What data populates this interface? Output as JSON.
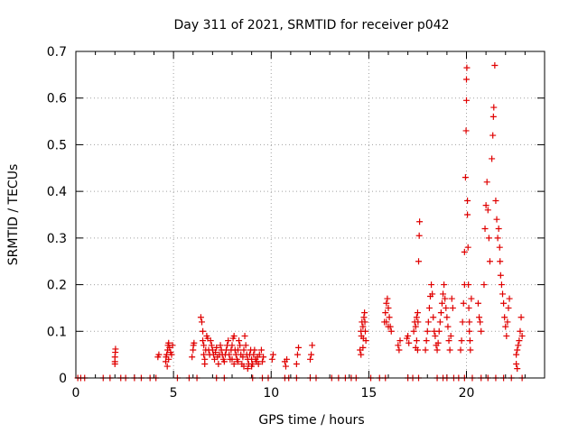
{
  "chart_data": {
    "type": "scatter",
    "title": "Day 311 of 2021, SRMTID for receiver p042",
    "xlabel": "GPS time / hours",
    "ylabel": "SRMTID / TECUs",
    "xlim": [
      0,
      24
    ],
    "ylim": [
      0,
      0.7
    ],
    "x_ticks": [
      0,
      5,
      10,
      15,
      20
    ],
    "x_tick_labels": [
      "0",
      "5",
      "10",
      "15",
      "20"
    ],
    "y_ticks": [
      0,
      0.1,
      0.2,
      0.3,
      0.4,
      0.5,
      0.6,
      0.7
    ],
    "y_tick_labels": [
      "0",
      "0.1",
      "0.2",
      "0.3",
      "0.4",
      "0.5",
      "0.6",
      "0.7"
    ],
    "grid": true,
    "marker": "+",
    "marker_color": "#e00000",
    "series": [
      {
        "name": "SRMTID",
        "points": [
          [
            0.1,
            0
          ],
          [
            0.25,
            0
          ],
          [
            0.45,
            0
          ],
          [
            1.4,
            0
          ],
          [
            1.75,
            0
          ],
          [
            2.3,
            0
          ],
          [
            2.55,
            0
          ],
          [
            3.0,
            0
          ],
          [
            3.35,
            0
          ],
          [
            3.8,
            0
          ],
          [
            4.1,
            0
          ],
          [
            5.2,
            0
          ],
          [
            5.8,
            0
          ],
          [
            6.2,
            0
          ],
          [
            7.2,
            0
          ],
          [
            7.6,
            0
          ],
          [
            9.05,
            0
          ],
          [
            9.55,
            0
          ],
          [
            9.85,
            0
          ],
          [
            10.7,
            0
          ],
          [
            10.9,
            0
          ],
          [
            11.3,
            0
          ],
          [
            12.0,
            0
          ],
          [
            12.3,
            0
          ],
          [
            13.1,
            0
          ],
          [
            13.45,
            0
          ],
          [
            13.8,
            0
          ],
          [
            14.1,
            0
          ],
          [
            14.35,
            0
          ],
          [
            15.1,
            0
          ],
          [
            15.55,
            0
          ],
          [
            15.85,
            0
          ],
          [
            17.0,
            0
          ],
          [
            17.25,
            0
          ],
          [
            17.55,
            0
          ],
          [
            18.5,
            0
          ],
          [
            18.8,
            0
          ],
          [
            19.0,
            0
          ],
          [
            19.35,
            0
          ],
          [
            19.6,
            0
          ],
          [
            19.9,
            0
          ],
          [
            20.3,
            0
          ],
          [
            20.75,
            0
          ],
          [
            21.1,
            0
          ],
          [
            21.5,
            0
          ],
          [
            21.9,
            0
          ],
          [
            22.3,
            0
          ],
          [
            22.85,
            0
          ],
          [
            2.0,
            0.035
          ],
          [
            2.0,
            0.045
          ],
          [
            2.02,
            0.055
          ],
          [
            2.03,
            0.062
          ],
          [
            2.0,
            0.03
          ],
          [
            4.2,
            0.045
          ],
          [
            4.25,
            0.05
          ],
          [
            4.6,
            0.035
          ],
          [
            4.62,
            0.045
          ],
          [
            4.65,
            0.05
          ],
          [
            4.7,
            0.06
          ],
          [
            4.72,
            0.07
          ],
          [
            4.75,
            0.075
          ],
          [
            4.8,
            0.065
          ],
          [
            4.85,
            0.055
          ],
          [
            4.9,
            0.05
          ],
          [
            4.95,
            0.07
          ],
          [
            4.68,
            0.025
          ],
          [
            4.75,
            0.04
          ],
          [
            5.95,
            0.045
          ],
          [
            6.0,
            0.06
          ],
          [
            6.02,
            0.07
          ],
          [
            6.05,
            0.075
          ],
          [
            6.4,
            0.13
          ],
          [
            6.45,
            0.12
          ],
          [
            6.5,
            0.1
          ],
          [
            6.5,
            0.08
          ],
          [
            6.55,
            0.07
          ],
          [
            6.55,
            0.05
          ],
          [
            6.6,
            0.04
          ],
          [
            6.6,
            0.03
          ],
          [
            6.65,
            0.06
          ],
          [
            6.7,
            0.09
          ],
          [
            6.75,
            0.085
          ],
          [
            6.8,
            0.06
          ],
          [
            6.85,
            0.05
          ],
          [
            6.9,
            0.08
          ],
          [
            6.95,
            0.07
          ],
          [
            7.0,
            0.06
          ],
          [
            7.05,
            0.05
          ],
          [
            7.1,
            0.04
          ],
          [
            7.15,
            0.055
          ],
          [
            7.2,
            0.065
          ],
          [
            7.25,
            0.045
          ],
          [
            7.3,
            0.03
          ],
          [
            7.35,
            0.05
          ],
          [
            7.4,
            0.07
          ],
          [
            7.45,
            0.06
          ],
          [
            7.5,
            0.05
          ],
          [
            7.55,
            0.04
          ],
          [
            7.6,
            0.035
          ],
          [
            7.65,
            0.05
          ],
          [
            7.7,
            0.06
          ],
          [
            7.75,
            0.07
          ],
          [
            7.8,
            0.08
          ],
          [
            7.85,
            0.05
          ],
          [
            7.9,
            0.04
          ],
          [
            7.95,
            0.06
          ],
          [
            8.0,
            0.07
          ],
          [
            8.05,
            0.085
          ],
          [
            8.1,
            0.09
          ],
          [
            8.15,
            0.06
          ],
          [
            8.2,
            0.05
          ],
          [
            8.25,
            0.04
          ],
          [
            8.3,
            0.06
          ],
          [
            8.35,
            0.08
          ],
          [
            8.4,
            0.07
          ],
          [
            8.45,
            0.05
          ],
          [
            8.5,
            0.03
          ],
          [
            8.55,
            0.045
          ],
          [
            8.6,
            0.06
          ],
          [
            8.65,
            0.09
          ],
          [
            8.7,
            0.07
          ],
          [
            8.75,
            0.05
          ],
          [
            8.8,
            0.04
          ],
          [
            8.85,
            0.03
          ],
          [
            8.9,
            0.05
          ],
          [
            8.95,
            0.06
          ],
          [
            9.0,
            0.04
          ],
          [
            9.05,
            0.03
          ],
          [
            9.1,
            0.05
          ],
          [
            9.15,
            0.06
          ],
          [
            9.2,
            0.04
          ],
          [
            9.25,
            0.035
          ],
          [
            9.3,
            0.045
          ],
          [
            9.35,
            0.03
          ],
          [
            9.4,
            0.05
          ],
          [
            9.5,
            0.06
          ],
          [
            9.55,
            0.035
          ],
          [
            9.6,
            0.045
          ],
          [
            8.0,
            0.04
          ],
          [
            8.1,
            0.03
          ],
          [
            8.3,
            0.035
          ],
          [
            8.6,
            0.025
          ],
          [
            8.8,
            0.02
          ],
          [
            9.0,
            0.025
          ],
          [
            10.05,
            0.04
          ],
          [
            10.1,
            0.05
          ],
          [
            10.7,
            0.035
          ],
          [
            10.75,
            0.025
          ],
          [
            10.8,
            0.04
          ],
          [
            11.3,
            0.03
          ],
          [
            11.35,
            0.05
          ],
          [
            11.4,
            0.065
          ],
          [
            12.0,
            0.04
          ],
          [
            12.05,
            0.05
          ],
          [
            12.1,
            0.07
          ],
          [
            14.6,
            0.1
          ],
          [
            14.62,
            0.09
          ],
          [
            14.65,
            0.12
          ],
          [
            14.7,
            0.11
          ],
          [
            14.72,
            0.085
          ],
          [
            14.75,
            0.13
          ],
          [
            14.78,
            0.14
          ],
          [
            14.8,
            0.12
          ],
          [
            14.82,
            0.1
          ],
          [
            14.85,
            0.08
          ],
          [
            14.55,
            0.06
          ],
          [
            14.6,
            0.05
          ],
          [
            14.7,
            0.065
          ],
          [
            15.8,
            0.12
          ],
          [
            15.85,
            0.14
          ],
          [
            15.9,
            0.16
          ],
          [
            15.95,
            0.17
          ],
          [
            16.0,
            0.15
          ],
          [
            16.05,
            0.13
          ],
          [
            16.1,
            0.11
          ],
          [
            16.15,
            0.1
          ],
          [
            15.9,
            0.12
          ],
          [
            16.0,
            0.11
          ],
          [
            16.5,
            0.07
          ],
          [
            16.55,
            0.06
          ],
          [
            16.6,
            0.08
          ],
          [
            16.95,
            0.085
          ],
          [
            17.0,
            0.09
          ],
          [
            17.05,
            0.075
          ],
          [
            17.3,
            0.1
          ],
          [
            17.35,
            0.12
          ],
          [
            17.4,
            0.11
          ],
          [
            17.45,
            0.13
          ],
          [
            17.5,
            0.14
          ],
          [
            17.52,
            0.12
          ],
          [
            17.55,
            0.25
          ],
          [
            17.58,
            0.305
          ],
          [
            17.6,
            0.335
          ],
          [
            17.4,
            0.065
          ],
          [
            17.45,
            0.08
          ],
          [
            17.5,
            0.06
          ],
          [
            17.9,
            0.06
          ],
          [
            17.95,
            0.08
          ],
          [
            18.0,
            0.1
          ],
          [
            18.05,
            0.12
          ],
          [
            18.1,
            0.15
          ],
          [
            18.15,
            0.175
          ],
          [
            18.2,
            0.2
          ],
          [
            18.25,
            0.18
          ],
          [
            18.3,
            0.13
          ],
          [
            18.35,
            0.1
          ],
          [
            18.4,
            0.09
          ],
          [
            18.45,
            0.07
          ],
          [
            18.5,
            0.06
          ],
          [
            18.55,
            0.075
          ],
          [
            18.6,
            0.1
          ],
          [
            18.65,
            0.12
          ],
          [
            18.7,
            0.14
          ],
          [
            18.75,
            0.16
          ],
          [
            18.8,
            0.18
          ],
          [
            18.85,
            0.2
          ],
          [
            18.9,
            0.17
          ],
          [
            18.95,
            0.15
          ],
          [
            19.0,
            0.13
          ],
          [
            19.05,
            0.11
          ],
          [
            19.1,
            0.08
          ],
          [
            19.15,
            0.06
          ],
          [
            19.2,
            0.09
          ],
          [
            19.25,
            0.17
          ],
          [
            19.3,
            0.15
          ],
          [
            19.7,
            0.06
          ],
          [
            19.75,
            0.08
          ],
          [
            19.8,
            0.12
          ],
          [
            19.85,
            0.16
          ],
          [
            19.9,
            0.2
          ],
          [
            19.9,
            0.27
          ],
          [
            19.95,
            0.43
          ],
          [
            19.98,
            0.53
          ],
          [
            20.0,
            0.64
          ],
          [
            20.0,
            0.595
          ],
          [
            20.02,
            0.665
          ],
          [
            20.05,
            0.38
          ],
          [
            20.05,
            0.35
          ],
          [
            20.08,
            0.28
          ],
          [
            20.1,
            0.2
          ],
          [
            20.12,
            0.15
          ],
          [
            20.15,
            0.12
          ],
          [
            20.15,
            0.1
          ],
          [
            20.18,
            0.08
          ],
          [
            20.2,
            0.06
          ],
          [
            20.25,
            0.17
          ],
          [
            20.6,
            0.16
          ],
          [
            20.65,
            0.13
          ],
          [
            20.7,
            0.12
          ],
          [
            20.75,
            0.1
          ],
          [
            20.9,
            0.2
          ],
          [
            20.95,
            0.32
          ],
          [
            21.0,
            0.37
          ],
          [
            21.05,
            0.42
          ],
          [
            21.1,
            0.36
          ],
          [
            21.15,
            0.3
          ],
          [
            21.2,
            0.25
          ],
          [
            21.3,
            0.47
          ],
          [
            21.35,
            0.52
          ],
          [
            21.38,
            0.56
          ],
          [
            21.4,
            0.58
          ],
          [
            21.45,
            0.67
          ],
          [
            21.5,
            0.38
          ],
          [
            21.55,
            0.34
          ],
          [
            21.6,
            0.3
          ],
          [
            21.65,
            0.32
          ],
          [
            21.7,
            0.28
          ],
          [
            21.72,
            0.25
          ],
          [
            21.75,
            0.22
          ],
          [
            21.8,
            0.2
          ],
          [
            21.85,
            0.18
          ],
          [
            21.9,
            0.16
          ],
          [
            21.95,
            0.13
          ],
          [
            22.0,
            0.11
          ],
          [
            22.05,
            0.09
          ],
          [
            22.1,
            0.12
          ],
          [
            22.15,
            0.15
          ],
          [
            22.2,
            0.17
          ],
          [
            22.55,
            0.05
          ],
          [
            22.6,
            0.06
          ],
          [
            22.65,
            0.07
          ],
          [
            22.7,
            0.08
          ],
          [
            22.75,
            0.1
          ],
          [
            22.8,
            0.13
          ],
          [
            22.85,
            0.09
          ],
          [
            22.55,
            0.03
          ],
          [
            22.6,
            0.02
          ]
        ]
      }
    ]
  }
}
